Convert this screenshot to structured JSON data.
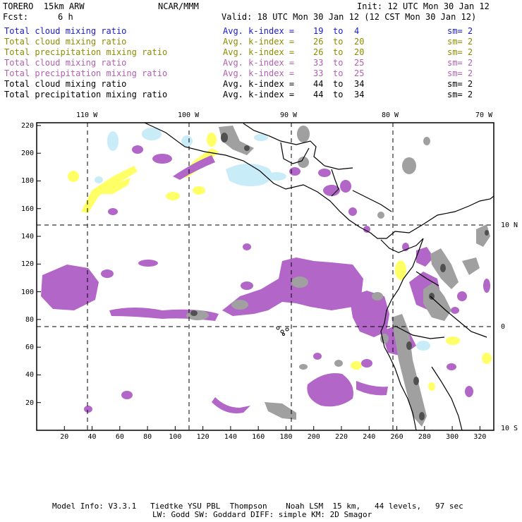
{
  "header": {
    "model": "TORERO  15km ARW",
    "org": "NCAR/MMM",
    "init": "Init: 12 UTC Mon 30 Jan 12",
    "fcst_label": "Fcst:",
    "fcst_value": "6 h",
    "valid": "Valid: 18 UTC Mon 30 Jan 12 (12 CST Mon 30 Jan 12)"
  },
  "legend": [
    {
      "field": "Total cloud mixing ratio",
      "avg": "Avg. k-index =",
      "k1": "19",
      "to": "to",
      "k2": "4",
      "sm": "sm= 2",
      "color": "#1a1acc"
    },
    {
      "field": "Total cloud mixing ratio",
      "avg": "Avg. k-index =",
      "k1": "26",
      "to": "to",
      "k2": "20",
      "sm": "sm= 2",
      "color": "#8c8c00"
    },
    {
      "field": "Total precipitation mixing ratio",
      "avg": "Avg. k-index =",
      "k1": "26",
      "to": "to",
      "k2": "20",
      "sm": "sm= 2",
      "color": "#8c8c00"
    },
    {
      "field": "Total cloud mixing ratio",
      "avg": "Avg. k-index =",
      "k1": "33",
      "to": "to",
      "k2": "25",
      "sm": "sm= 2",
      "color": "#b060b0"
    },
    {
      "field": "Total precipitation mixing ratio",
      "avg": "Avg. k-index =",
      "k1": "33",
      "to": "to",
      "k2": "25",
      "sm": "sm= 2",
      "color": "#b060b0"
    },
    {
      "field": "Total cloud mixing ratio",
      "avg": "Avg. k-index =",
      "k1": "44",
      "to": "to",
      "k2": "34",
      "sm": "sm= 2",
      "color": "#000000"
    },
    {
      "field": "Total precipitation mixing ratio",
      "avg": "Avg. k-index =",
      "k1": "44",
      "to": "to",
      "k2": "34",
      "sm": "sm= 2",
      "color": "#000000"
    }
  ],
  "map": {
    "colors": {
      "cyan": "#c8ecf8",
      "yellow": "#ffff66",
      "magenta": "#b266c8",
      "gray": "#a0a0a0",
      "darkgray": "#505050",
      "border": "#000000"
    },
    "x_ticks": [
      "20",
      "40",
      "60",
      "80",
      "100",
      "120",
      "140",
      "160",
      "180",
      "200",
      "220",
      "240",
      "260",
      "280",
      "300",
      "320"
    ],
    "y_ticks": [
      "20",
      "40",
      "60",
      "80",
      "100",
      "120",
      "140",
      "160",
      "180",
      "200",
      "220"
    ],
    "lon_labels": [
      "110 W",
      "100 W",
      "90 W",
      "80 W",
      "70 W"
    ],
    "lat_labels": [
      "10 N",
      "0",
      "10 S"
    ]
  },
  "footer": {
    "line1": "Model Info: V3.3.1   Tiedtke YSU PBL  Thompson    Noah LSM  15 km,   44 levels,   97 sec",
    "line2": "LW: Godd SW: Goddard DIFF: simple KM: 2D Smagor"
  }
}
